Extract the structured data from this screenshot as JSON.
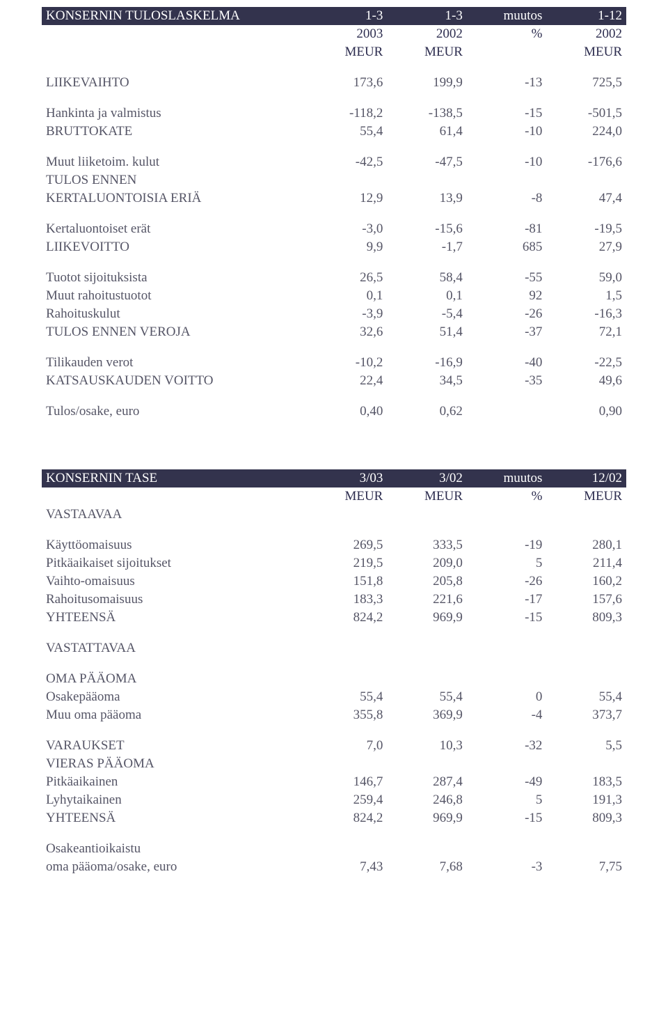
{
  "tbl1": {
    "header": {
      "title": "KONSERNIN TULOSLASKELMA",
      "c1": "1-3",
      "c2": "1-3",
      "c3": "muutos",
      "c4": "1-12"
    },
    "subhdr": {
      "c1": "2003",
      "c2": "2002",
      "c3": "%",
      "c4": "2002"
    },
    "units": {
      "c1": "MEUR",
      "c2": "MEUR",
      "c4": "MEUR"
    },
    "r1": {
      "l": "LIIKEVAIHTO",
      "v": [
        "173,6",
        "199,9",
        "-13",
        "725,5"
      ]
    },
    "r2": {
      "l": "Hankinta ja valmistus",
      "v": [
        "-118,2",
        "-138,5",
        "-15",
        "-501,5"
      ]
    },
    "r3": {
      "l": "BRUTTOKATE",
      "v": [
        "55,4",
        "61,4",
        "-10",
        "224,0"
      ]
    },
    "r4": {
      "l": "Muut liiketoim. kulut",
      "v": [
        "-42,5",
        "-47,5",
        "-10",
        "-176,6"
      ]
    },
    "r5a": {
      "l": "TULOS ENNEN"
    },
    "r5b": {
      "l": "KERTALUONTOISIA ERIÄ",
      "v": [
        "12,9",
        "13,9",
        "-8",
        "47,4"
      ]
    },
    "r6": {
      "l": "Kertaluontoiset erät",
      "v": [
        "-3,0",
        "-15,6",
        "-81",
        "-19,5"
      ]
    },
    "r7": {
      "l": "LIIKEVOITTO",
      "v": [
        "9,9",
        "-1,7",
        "685",
        "27,9"
      ]
    },
    "r8": {
      "l": "Tuotot sijoituksista",
      "v": [
        "26,5",
        "58,4",
        "-55",
        "59,0"
      ]
    },
    "r9": {
      "l": "Muut rahoitustuotot",
      "v": [
        "0,1",
        "0,1",
        "92",
        "1,5"
      ]
    },
    "r10": {
      "l": "Rahoituskulut",
      "v": [
        "-3,9",
        "-5,4",
        "-26",
        "-16,3"
      ]
    },
    "r11": {
      "l": "TULOS ENNEN VEROJA",
      "v": [
        "32,6",
        "51,4",
        "-37",
        "72,1"
      ]
    },
    "r12": {
      "l": "Tilikauden verot",
      "v": [
        "-10,2",
        "-16,9",
        "-40",
        "-22,5"
      ]
    },
    "r13": {
      "l": "KATSAUSKAUDEN VOITTO",
      "v": [
        "22,4",
        "34,5",
        "-35",
        "49,6"
      ]
    },
    "r14": {
      "l": "Tulos/osake, euro",
      "v": [
        "0,40",
        "0,62",
        "",
        "0,90"
      ]
    }
  },
  "tbl2": {
    "header": {
      "title": "KONSERNIN TASE",
      "c1": "3/03",
      "c2": "3/02",
      "c3": "muutos",
      "c4": "12/02"
    },
    "units": {
      "c1": "MEUR",
      "c2": "MEUR",
      "c3": "%",
      "c4": "MEUR"
    },
    "sec1": {
      "l": "VASTAAVAA"
    },
    "r1": {
      "l": "Käyttöomaisuus",
      "v": [
        "269,5",
        "333,5",
        "-19",
        "280,1"
      ]
    },
    "r2": {
      "l": "Pitkäaikaiset sijoitukset",
      "v": [
        "219,5",
        "209,0",
        "5",
        "211,4"
      ]
    },
    "r3": {
      "l": "Vaihto-omaisuus",
      "v": [
        "151,8",
        "205,8",
        "-26",
        "160,2"
      ]
    },
    "r4": {
      "l": "Rahoitusomaisuus",
      "v": [
        "183,3",
        "221,6",
        "-17",
        "157,6"
      ]
    },
    "r5": {
      "l": "YHTEENSÄ",
      "v": [
        "824,2",
        "969,9",
        "-15",
        "809,3"
      ]
    },
    "sec2": {
      "l": "VASTATTAVAA"
    },
    "sec3": {
      "l": "OMA PÄÄOMA"
    },
    "r6": {
      "l": "Osakepääoma",
      "v": [
        "55,4",
        "55,4",
        "0",
        "55,4"
      ]
    },
    "r7": {
      "l": "Muu oma pääoma",
      "v": [
        "355,8",
        "369,9",
        "-4",
        "373,7"
      ]
    },
    "r8": {
      "l": "VARAUKSET",
      "v": [
        "7,0",
        "10,3",
        "-32",
        "5,5"
      ]
    },
    "sec4": {
      "l": "VIERAS PÄÄOMA"
    },
    "r9": {
      "l": "Pitkäaikainen",
      "v": [
        "146,7",
        "287,4",
        "-49",
        "183,5"
      ]
    },
    "r10": {
      "l": "Lyhytaikainen",
      "v": [
        "259,4",
        "246,8",
        "5",
        "191,3"
      ]
    },
    "r11": {
      "l": "YHTEENSÄ",
      "v": [
        "824,2",
        "969,9",
        "-15",
        "809,3"
      ]
    },
    "r12a": {
      "l": "Osakeantioikaistu"
    },
    "r12b": {
      "l": "oma pääoma/osake, euro",
      "v": [
        "7,43",
        "7,68",
        "-3",
        "7,75"
      ]
    }
  }
}
